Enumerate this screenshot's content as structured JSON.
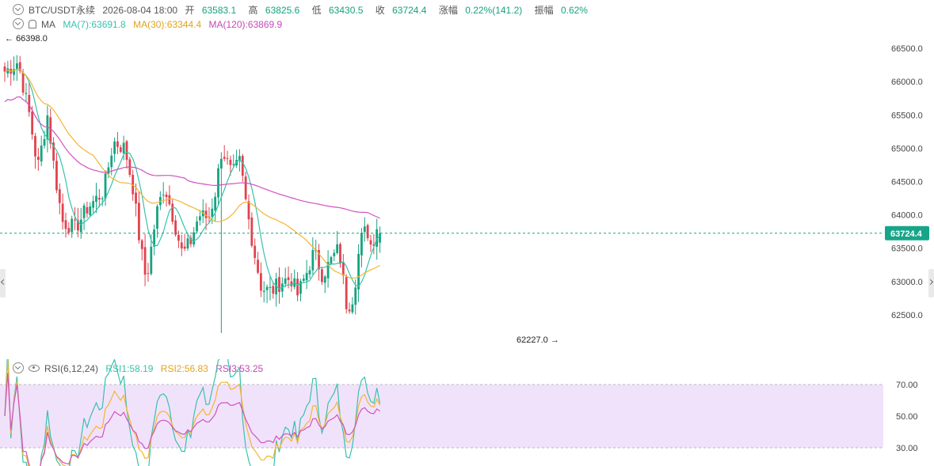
{
  "header": {
    "symbol": "BTC/USDT永续",
    "datetime": "2026-08-04 18:00",
    "open_label": "开",
    "open": "63583.1",
    "high_label": "高",
    "high": "63825.6",
    "low_label": "低",
    "low": "63430.5",
    "close_label": "收",
    "close": "63724.4",
    "change_label": "涨幅",
    "change": "0.22%(141.2)",
    "amp_label": "振幅",
    "amp": "0.62%"
  },
  "ma_legend": {
    "label": "MA",
    "ma7": "MA(7):63691.8",
    "ma30": "MA(30):63344.4",
    "ma120": "MA(120):63869.9"
  },
  "rsi_legend": {
    "label": "RSI(6,12,24)",
    "rsi1": "RSI1:58.19",
    "rsi2": "RSI2:56.83",
    "rsi3": "RSI3:53.25"
  },
  "colors": {
    "up": "#16a37f",
    "down": "#e0434f",
    "ma7": "#37c2ae",
    "ma30": "#f2b632",
    "ma120": "#d053c1",
    "rsi1": "#37c2ae",
    "rsi2": "#f2b632",
    "rsi3": "#d053c1",
    "rsi_band": "#f1e2fb",
    "price_line": "#17a589"
  },
  "chart_data": [
    {
      "type": "candlestick",
      "title": "",
      "current_price": "63724.4",
      "max_marker": "66398.0",
      "min_marker": "62227.0",
      "y_ticks": [
        "66500.0",
        "66000.0",
        "65500.0",
        "65000.0",
        "64500.0",
        "64000.0",
        "63500.0",
        "63000.0",
        "62500.0"
      ],
      "ylim": [
        62000,
        66750
      ],
      "candles_count": 124,
      "keypoints_close": [
        [
          0,
          66150
        ],
        [
          8,
          66300
        ],
        [
          15,
          65500
        ],
        [
          20,
          64700
        ],
        [
          26,
          65500
        ],
        [
          30,
          64700
        ],
        [
          35,
          63900
        ],
        [
          43,
          63800
        ],
        [
          50,
          64100
        ],
        [
          60,
          64350
        ],
        [
          66,
          65100
        ],
        [
          73,
          65000
        ],
        [
          78,
          64400
        ],
        [
          82,
          63600
        ],
        [
          86,
          63000
        ],
        [
          92,
          64000
        ],
        [
          97,
          64450
        ],
        [
          102,
          64000
        ],
        [
          108,
          63400
        ],
        [
          113,
          63600
        ],
        [
          118,
          64000
        ],
        [
          124,
          63950
        ],
        [
          128,
          64350
        ],
        [
          132,
          65000
        ],
        [
          138,
          64600
        ],
        [
          143,
          64800
        ],
        [
          147,
          64100
        ],
        [
          152,
          63400
        ],
        [
          156,
          62900
        ],
        [
          162,
          62850
        ],
        [
          168,
          63000
        ],
        [
          174,
          63050
        ],
        [
          178,
          62800
        ],
        [
          183,
          63100
        ],
        [
          188,
          63450
        ],
        [
          193,
          63100
        ],
        [
          198,
          63300
        ],
        [
          203,
          63500
        ],
        [
          208,
          62600
        ],
        [
          212,
          62800
        ],
        [
          216,
          63600
        ],
        [
          220,
          63800
        ],
        [
          223,
          63500
        ],
        [
          226,
          63850
        ],
        [
          228,
          63724.4
        ]
      ],
      "ma7": "63691.8",
      "ma30": "63344.4",
      "ma120": "63869.9"
    },
    {
      "type": "line",
      "title": "",
      "y_ticks": [
        "70.00",
        "50.00",
        "30.00"
      ],
      "ylim": [
        20,
        85
      ],
      "band": [
        30,
        70
      ],
      "series": [
        {
          "name": "RSI1",
          "last": 58.19
        },
        {
          "name": "RSI2",
          "last": 56.83
        },
        {
          "name": "RSI3",
          "last": 53.25
        }
      ]
    }
  ]
}
